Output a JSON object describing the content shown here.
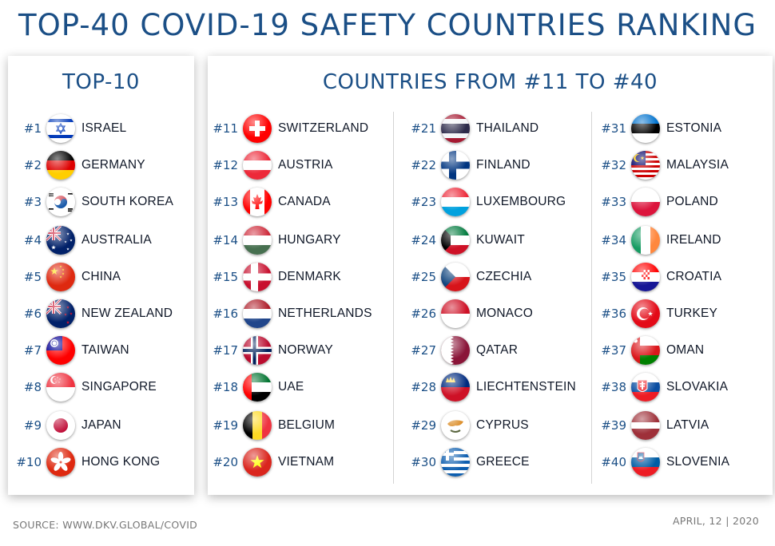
{
  "title": "TOP-40 COVID-19 SAFETY COUNTRIES RANKING",
  "top10": {
    "heading": "TOP-10",
    "items": [
      {
        "rank": "#1",
        "country": "ISRAEL",
        "flag": "israel-flag-icon"
      },
      {
        "rank": "#2",
        "country": "GERMANY",
        "flag": "germany-flag-icon"
      },
      {
        "rank": "#3",
        "country": "SOUTH KOREA",
        "flag": "south-korea-flag-icon"
      },
      {
        "rank": "#4",
        "country": "AUSTRALIA",
        "flag": "australia-flag-icon"
      },
      {
        "rank": "#5",
        "country": "CHINA",
        "flag": "china-flag-icon"
      },
      {
        "rank": "#6",
        "country": "NEW ZEALAND",
        "flag": "new-zealand-flag-icon"
      },
      {
        "rank": "#7",
        "country": "TAIWAN",
        "flag": "taiwan-flag-icon"
      },
      {
        "rank": "#8",
        "country": "SINGAPORE",
        "flag": "singapore-flag-icon"
      },
      {
        "rank": "#9",
        "country": "JAPAN",
        "flag": "japan-flag-icon"
      },
      {
        "rank": "#10",
        "country": "HONG KONG",
        "flag": "hong-kong-flag-icon"
      }
    ]
  },
  "rest": {
    "heading": "COUNTRIES FROM #11 TO #40",
    "columns": [
      [
        {
          "rank": "#11",
          "country": "SWITZERLAND",
          "flag": "switzerland-flag-icon"
        },
        {
          "rank": "#12",
          "country": "AUSTRIA",
          "flag": "austria-flag-icon"
        },
        {
          "rank": "#13",
          "country": "CANADA",
          "flag": "canada-flag-icon"
        },
        {
          "rank": "#14",
          "country": "HUNGARY",
          "flag": "hungary-flag-icon"
        },
        {
          "rank": "#15",
          "country": "DENMARK",
          "flag": "denmark-flag-icon"
        },
        {
          "rank": "#16",
          "country": "NETHERLANDS",
          "flag": "netherlands-flag-icon"
        },
        {
          "rank": "#17",
          "country": "NORWAY",
          "flag": "norway-flag-icon"
        },
        {
          "rank": "#18",
          "country": "UAE",
          "flag": "uae-flag-icon"
        },
        {
          "rank": "#19",
          "country": "BELGIUM",
          "flag": "belgium-flag-icon"
        },
        {
          "rank": "#20",
          "country": "VIETNAM",
          "flag": "vietnam-flag-icon"
        }
      ],
      [
        {
          "rank": "#21",
          "country": "THAILAND",
          "flag": "thailand-flag-icon"
        },
        {
          "rank": "#22",
          "country": "FINLAND",
          "flag": "finland-flag-icon"
        },
        {
          "rank": "#23",
          "country": "LUXEMBOURG",
          "flag": "luxembourg-flag-icon"
        },
        {
          "rank": "#24",
          "country": "KUWAIT",
          "flag": "kuwait-flag-icon"
        },
        {
          "rank": "#25",
          "country": "CZECHIA",
          "flag": "czechia-flag-icon"
        },
        {
          "rank": "#26",
          "country": "MONACO",
          "flag": "monaco-flag-icon"
        },
        {
          "rank": "#27",
          "country": "QATAR",
          "flag": "qatar-flag-icon"
        },
        {
          "rank": "#28",
          "country": "LIECHTENSTEIN",
          "flag": "liechtenstein-flag-icon"
        },
        {
          "rank": "#29",
          "country": "CYPRUS",
          "flag": "cyprus-flag-icon"
        },
        {
          "rank": "#30",
          "country": "GREECE",
          "flag": "greece-flag-icon"
        }
      ],
      [
        {
          "rank": "#31",
          "country": "ESTONIA",
          "flag": "estonia-flag-icon"
        },
        {
          "rank": "#32",
          "country": "MALAYSIA",
          "flag": "malaysia-flag-icon"
        },
        {
          "rank": "#33",
          "country": "POLAND",
          "flag": "poland-flag-icon"
        },
        {
          "rank": "#34",
          "country": "IRELAND",
          "flag": "ireland-flag-icon"
        },
        {
          "rank": "#35",
          "country": "CROATIA",
          "flag": "croatia-flag-icon"
        },
        {
          "rank": "#36",
          "country": "TURKEY",
          "flag": "turkey-flag-icon"
        },
        {
          "rank": "#37",
          "country": "OMAN",
          "flag": "oman-flag-icon"
        },
        {
          "rank": "#38",
          "country": "SLOVAKIA",
          "flag": "slovakia-flag-icon"
        },
        {
          "rank": "#39",
          "country": "LATVIA",
          "flag": "latvia-flag-icon"
        },
        {
          "rank": "#40",
          "country": "SLOVENIA",
          "flag": "slovenia-flag-icon"
        }
      ]
    ]
  },
  "footer": {
    "source": "SOURCE: WWW.DKV.GLOBAL/COVID",
    "date": "APRIL, 12 | 2020"
  },
  "colors": {
    "heading": "#1b4f86",
    "rank": "#1b4f86",
    "country": "#101828"
  }
}
